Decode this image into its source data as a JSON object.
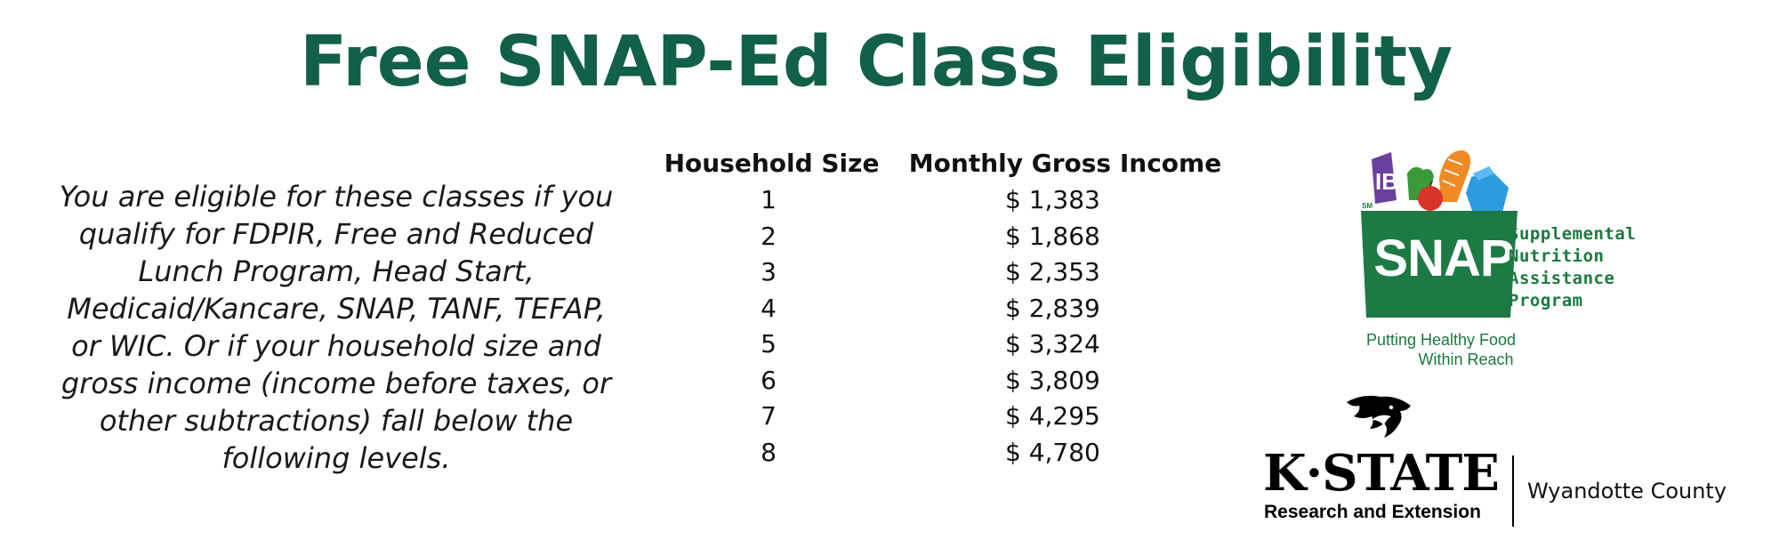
{
  "title": "Free SNAP-Ed Class Eligibility",
  "eligibility_text": "You are eligible for these classes if you qualify for FDPIR, Free and Reduced Lunch Program, Head Start, Medicaid/Kancare, SNAP, TANF, TEFAP, or WIC. Or if your household size and gross income (income before taxes, or other subtractions) fall below the following levels.",
  "table": {
    "headers": {
      "size": "Household Size",
      "income": "Monthly Gross Income"
    },
    "rows": [
      {
        "size": "1",
        "income": "$ 1,383"
      },
      {
        "size": "2",
        "income": "$ 1,868"
      },
      {
        "size": "3",
        "income": "$ 2,353"
      },
      {
        "size": "4",
        "income": "$ 2,839"
      },
      {
        "size": "5",
        "income": "$ 3,324"
      },
      {
        "size": "6",
        "income": "$ 3,809"
      },
      {
        "size": "7",
        "income": "$ 4,295"
      },
      {
        "size": "8",
        "income": "$ 4,780"
      }
    ]
  },
  "snap_logo": {
    "word": "SNAP",
    "sm": "SM",
    "program_lines": [
      "Supplemental",
      "Nutrition",
      "Assistance",
      "Program"
    ],
    "tagline_lines": [
      "Putting Healthy Food",
      "Within Reach"
    ],
    "icon": "grocery-bag-icon"
  },
  "kstate_logo": {
    "wordmark": "K·STATE",
    "subtitle": "Research and Extension",
    "county": "Wyandotte County",
    "icon": "wildcat-icon"
  },
  "colors": {
    "title_green": "#13604a",
    "snap_green": "#1a7a3e",
    "text": "#111111"
  }
}
